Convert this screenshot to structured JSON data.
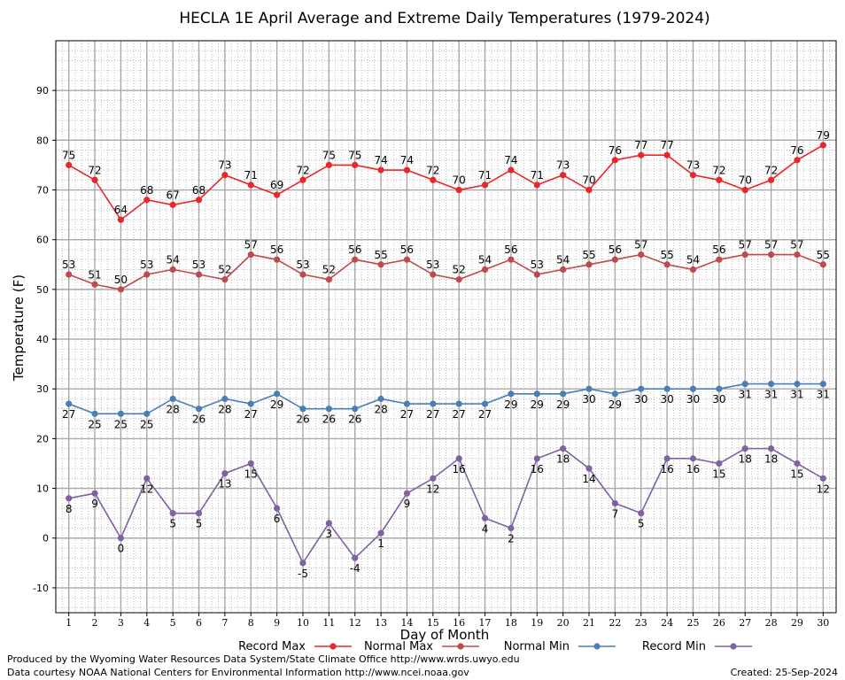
{
  "chart_data": {
    "type": "line",
    "title": "HECLA 1E April Average and Extreme Daily Temperatures (1979-2024)",
    "xlabel": "Day of Month",
    "ylabel": "Temperature (F)",
    "xlim": [
      0.5,
      30.5
    ],
    "ylim": [
      -15,
      100
    ],
    "yticks": [
      -10,
      0,
      10,
      20,
      30,
      40,
      50,
      60,
      70,
      80,
      90
    ],
    "x": [
      1,
      2,
      3,
      4,
      5,
      6,
      7,
      8,
      9,
      10,
      11,
      12,
      13,
      14,
      15,
      16,
      17,
      18,
      19,
      20,
      21,
      22,
      23,
      24,
      25,
      26,
      27,
      28,
      29,
      30
    ],
    "grid": true,
    "legend_position": "bottom",
    "series": [
      {
        "name": "Record Max",
        "color": "#e8262b",
        "label_pos": "above",
        "values": [
          75,
          72,
          64,
          68,
          67,
          68,
          73,
          71,
          69,
          72,
          75,
          75,
          74,
          74,
          72,
          70,
          71,
          74,
          71,
          73,
          70,
          76,
          77,
          77,
          73,
          72,
          70,
          72,
          76,
          79
        ]
      },
      {
        "name": "Normal Max",
        "color": "#bf4a4e",
        "label_pos": "above",
        "values": [
          53,
          51,
          50,
          53,
          54,
          53,
          52,
          57,
          56,
          53,
          52,
          56,
          55,
          56,
          53,
          52,
          54,
          56,
          53,
          54,
          55,
          56,
          57,
          55,
          54,
          56,
          57,
          57,
          57,
          55
        ]
      },
      {
        "name": "Normal Min",
        "color": "#4a7fb6",
        "label_pos": "below",
        "values": [
          27,
          25,
          25,
          25,
          28,
          26,
          28,
          27,
          29,
          26,
          26,
          26,
          28,
          27,
          27,
          27,
          27,
          29,
          29,
          29,
          30,
          29,
          30,
          30,
          30,
          30,
          31,
          31,
          31,
          31
        ]
      },
      {
        "name": "Record Min",
        "color": "#8061a2",
        "label_pos": "below",
        "values": [
          8,
          9,
          0,
          12,
          5,
          5,
          13,
          15,
          6,
          -5,
          3,
          -4,
          1,
          9,
          12,
          16,
          4,
          2,
          16,
          18,
          14,
          7,
          5,
          16,
          16,
          15,
          18,
          18,
          15,
          12
        ]
      }
    ]
  },
  "footer": {
    "line1": "Produced by the Wyoming Water Resources Data System/State Climate Office http://www.wrds.uwyo.edu",
    "line2": "Data courtesy NOAA National Centers for Environmental Information http://www.ncei.noaa.gov",
    "created": "Created:  25-Sep-2024"
  }
}
